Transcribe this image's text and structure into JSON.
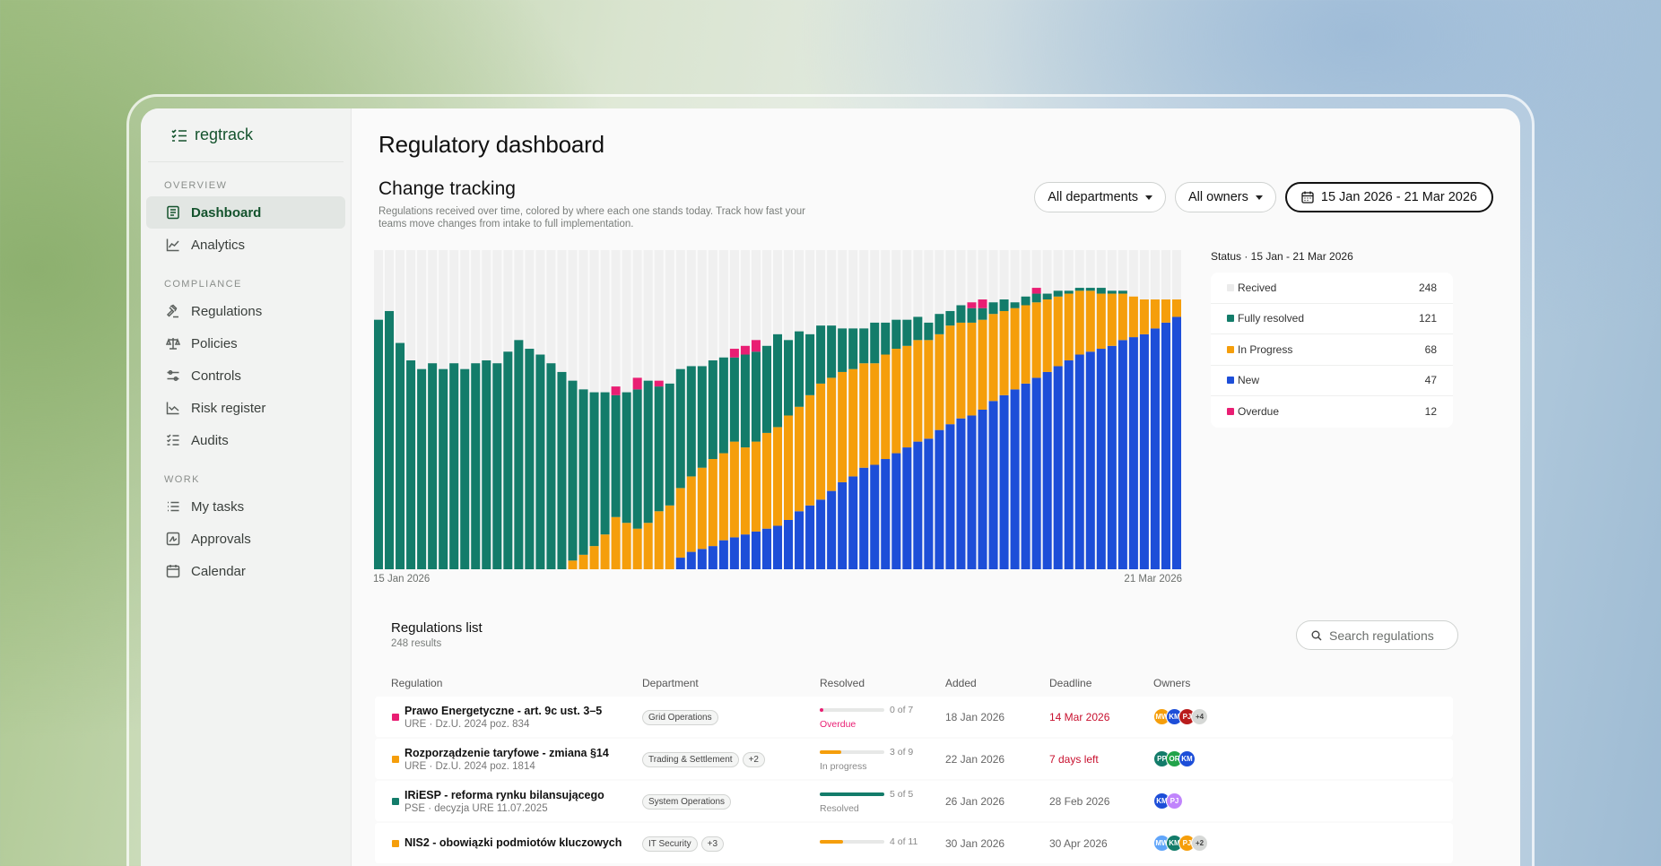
{
  "brand": {
    "name": "regtrack"
  },
  "sidebar": {
    "sections": [
      {
        "label": "OVERVIEW",
        "items": [
          {
            "label": "Dashboard",
            "icon": "document-icon",
            "active": true
          },
          {
            "label": "Analytics",
            "icon": "chart-line-icon",
            "active": false
          }
        ]
      },
      {
        "label": "COMPLIANCE",
        "items": [
          {
            "label": "Regulations",
            "icon": "gavel-icon"
          },
          {
            "label": "Policies",
            "icon": "scales-icon"
          },
          {
            "label": "Controls",
            "icon": "sliders-icon"
          },
          {
            "label": "Risk register",
            "icon": "trend-icon"
          },
          {
            "label": "Audits",
            "icon": "checklist-icon"
          }
        ]
      },
      {
        "label": "WORK",
        "items": [
          {
            "label": "My tasks",
            "icon": "list-icon"
          },
          {
            "label": "Approvals",
            "icon": "signature-icon"
          },
          {
            "label": "Calendar",
            "icon": "calendar-icon"
          }
        ]
      }
    ]
  },
  "page": {
    "title": "Regulatory dashboard"
  },
  "change_tracking": {
    "title": "Change tracking",
    "description": "Regulations received over time, colored by where each one stands today. Track how fast your teams move changes from intake to full implementation.",
    "filters": {
      "department": "All departments",
      "owner": "All owners",
      "date_range": "15 Jan 2026 - 21 Mar 2026"
    },
    "x_start": "15 Jan 2026",
    "x_end": "21 Mar 2026"
  },
  "colors": {
    "resolved": "#137c6a",
    "in_progress": "#f59e0b",
    "new": "#1d4ed8",
    "overdue": "#e91e73",
    "received": "#f0f0f0"
  },
  "chart_data": {
    "type": "bar",
    "stacked": true,
    "x_range": [
      "15 Jan 2026",
      "21 Mar 2026"
    ],
    "series": [
      {
        "name": "Fully resolved",
        "color": "#137c6a",
        "values": [
          86,
          89,
          78,
          72,
          69,
          71,
          69,
          71,
          69,
          71,
          72,
          71,
          75,
          79,
          76,
          74,
          71,
          68,
          62,
          57,
          53,
          49,
          42,
          45,
          48,
          49,
          43,
          42,
          41,
          38,
          35,
          34,
          33,
          29,
          32,
          31,
          30,
          32,
          26,
          26,
          21,
          20,
          18,
          15,
          14,
          12,
          14,
          11,
          10,
          9,
          8,
          6,
          7,
          5,
          6,
          5,
          4,
          4,
          4,
          2,
          3,
          3,
          2,
          2,
          1,
          1,
          1,
          2,
          1,
          1,
          0,
          0,
          0,
          0,
          0
        ]
      },
      {
        "name": "In Progress",
        "color": "#f59e0b",
        "values": [
          0,
          0,
          0,
          0,
          0,
          0,
          0,
          0,
          0,
          0,
          0,
          0,
          0,
          0,
          0,
          0,
          0,
          0,
          3,
          5,
          8,
          12,
          18,
          16,
          14,
          16,
          20,
          22,
          24,
          26,
          28,
          30,
          30,
          33,
          30,
          31,
          33,
          34,
          36,
          36,
          38,
          40,
          39,
          38,
          37,
          36,
          35,
          36,
          36,
          35,
          35,
          34,
          33,
          34,
          33,
          32,
          31,
          30,
          29,
          28,
          27,
          26,
          25,
          24,
          23,
          22,
          21,
          19,
          18,
          16,
          14,
          12,
          10,
          8,
          6
        ]
      },
      {
        "name": "New",
        "color": "#1d4ed8",
        "values": [
          0,
          0,
          0,
          0,
          0,
          0,
          0,
          0,
          0,
          0,
          0,
          0,
          0,
          0,
          0,
          0,
          0,
          0,
          0,
          0,
          0,
          0,
          0,
          0,
          0,
          0,
          0,
          0,
          4,
          6,
          7,
          8,
          10,
          11,
          12,
          13,
          14,
          15,
          17,
          20,
          22,
          24,
          27,
          30,
          32,
          35,
          36,
          38,
          40,
          42,
          44,
          45,
          48,
          50,
          52,
          53,
          55,
          58,
          60,
          62,
          64,
          66,
          68,
          70,
          72,
          74,
          75,
          76,
          77,
          79,
          80,
          81,
          83,
          85,
          87
        ]
      },
      {
        "name": "Overdue",
        "color": "#e91e73",
        "values": [
          0,
          0,
          0,
          0,
          0,
          0,
          0,
          0,
          0,
          0,
          0,
          0,
          0,
          0,
          0,
          0,
          0,
          0,
          0,
          0,
          0,
          0,
          3,
          0,
          4,
          0,
          2,
          0,
          0,
          0,
          0,
          0,
          0,
          3,
          3,
          4,
          0,
          0,
          0,
          0,
          0,
          0,
          0,
          0,
          0,
          0,
          0,
          0,
          0,
          0,
          0,
          0,
          0,
          0,
          0,
          2,
          3,
          0,
          0,
          0,
          0,
          2,
          0,
          0,
          0,
          0,
          0,
          0,
          0,
          0,
          0,
          0,
          0,
          0,
          0
        ]
      }
    ],
    "ylim": [
      0,
      110
    ],
    "grid": false
  },
  "status": {
    "title": "Status · 15 Jan - 21 Mar 2026",
    "rows": [
      {
        "label": "Recived",
        "value": "248",
        "color": "#ebebeb"
      },
      {
        "label": "Fully resolved",
        "value": "121",
        "color": "#137c6a"
      },
      {
        "label": "In Progress",
        "value": "68",
        "color": "#f59e0b"
      },
      {
        "label": "New",
        "value": "47",
        "color": "#1d4ed8"
      },
      {
        "label": "Overdue",
        "value": "12",
        "color": "#e91e73"
      }
    ]
  },
  "list": {
    "title": "Regulations list",
    "count": "248 results",
    "search_placeholder": "Search regulations",
    "columns": [
      "Regulation",
      "Department",
      "Resolved",
      "Added",
      "Deadline",
      "Owners"
    ],
    "rows": [
      {
        "name": "Prawo Energetyczne - art. 9c ust. 3–5",
        "sub": "URE · Dz.U. 2024 poz. 834",
        "dot": "#e91e73",
        "departments": [
          "Grid Operations"
        ],
        "extra": "",
        "resolved": "0 of 7",
        "progress": 0.05,
        "bar": "#e91e73",
        "state": "Overdue",
        "state_color": "#e91e73",
        "added": "18 Jan 2026",
        "deadline": "14 Mar 2026",
        "deadline_red": true,
        "owners": [
          {
            "i": "MW",
            "c": "#f59e0b"
          },
          {
            "i": "KM",
            "c": "#1d4ed8"
          },
          {
            "i": "PJ",
            "c": "#b91c1c"
          }
        ],
        "more": "+4"
      },
      {
        "name": "Rozporządzenie taryfowe - zmiana §14",
        "sub": "URE · Dz.U. 2024 poz. 1814",
        "dot": "#f59e0b",
        "departments": [
          "Trading & Settlement"
        ],
        "extra": "+2",
        "resolved": "3 of 9",
        "progress": 0.33,
        "bar": "#f59e0b",
        "state": "In progress",
        "state_color": "#888888",
        "added": "22 Jan 2026",
        "deadline": "7 days left",
        "deadline_red": true,
        "owners": [
          {
            "i": "PP",
            "c": "#137c6a"
          },
          {
            "i": "OR",
            "c": "#22a34a"
          },
          {
            "i": "KM",
            "c": "#1d4ed8"
          }
        ],
        "more": ""
      },
      {
        "name": "IRiESP - reforma rynku bilansującego",
        "sub": "PSE · decyzja URE 11.07.2025",
        "dot": "#137c6a",
        "departments": [
          "System Operations"
        ],
        "extra": "",
        "resolved": "5 of 5",
        "progress": 1.0,
        "bar": "#137c6a",
        "state": "Resolved",
        "state_color": "#888888",
        "added": "26 Jan 2026",
        "deadline": "28 Feb 2026",
        "deadline_red": false,
        "owners": [
          {
            "i": "KM",
            "c": "#1d4ed8"
          },
          {
            "i": "PJ",
            "c": "#c084fc"
          }
        ],
        "more": ""
      },
      {
        "name": "NIS2 - obowiązki podmiotów kluczowych",
        "sub": "",
        "dot": "#f59e0b",
        "departments": [
          "IT Security"
        ],
        "extra": "+3",
        "resolved": "4 of 11",
        "progress": 0.36,
        "bar": "#f59e0b",
        "state": "",
        "state_color": "#888888",
        "added": "30 Jan 2026",
        "deadline": "30 Apr 2026",
        "deadline_red": false,
        "owners": [
          {
            "i": "MW",
            "c": "#60a5fa"
          },
          {
            "i": "KM",
            "c": "#137c6a"
          },
          {
            "i": "PJ",
            "c": "#f59e0b"
          }
        ],
        "more": "+2"
      }
    ]
  }
}
